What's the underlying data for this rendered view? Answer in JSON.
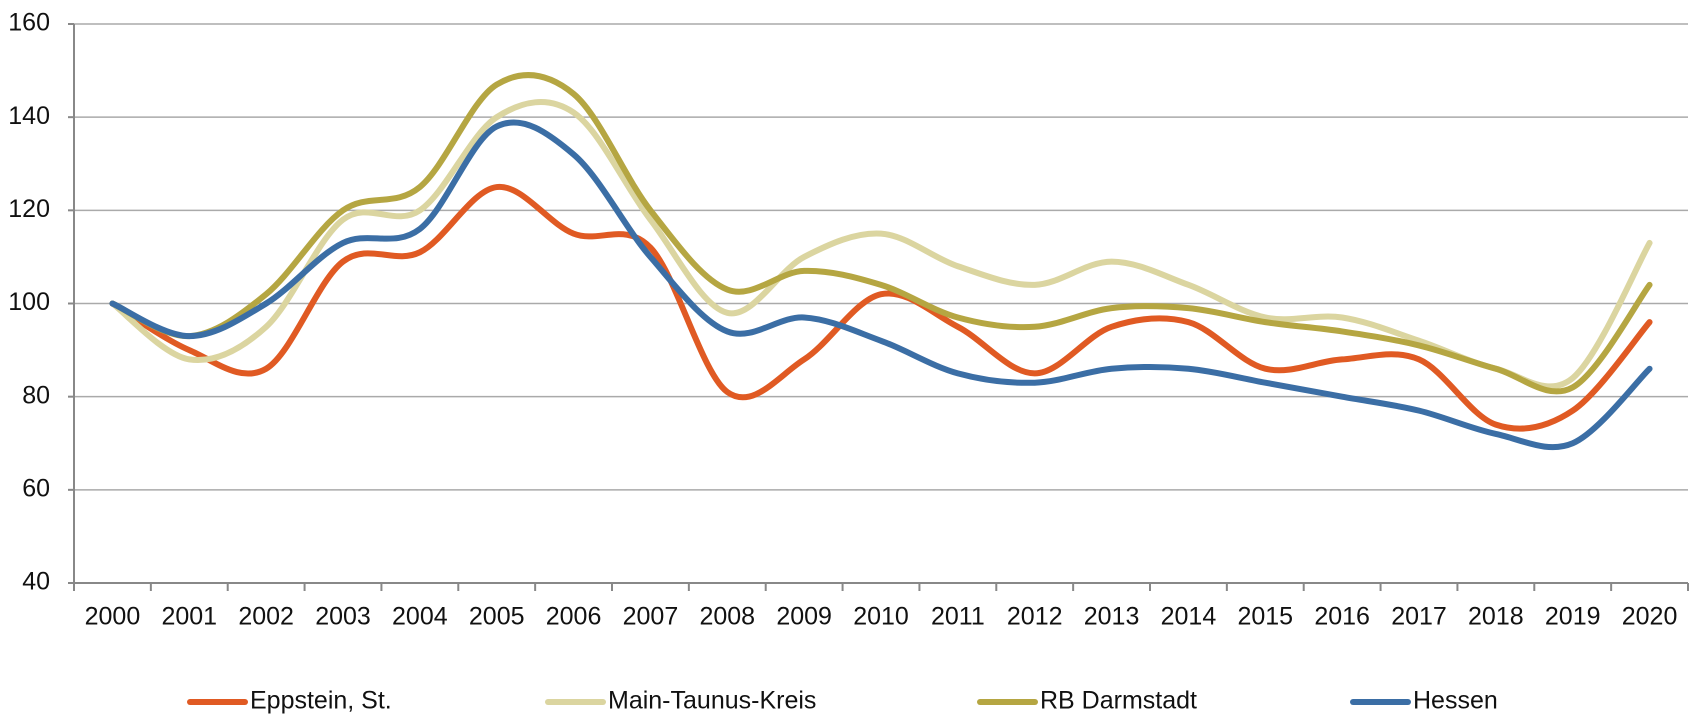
{
  "chart_data": {
    "type": "line",
    "categories": [
      "2000",
      "2001",
      "2002",
      "2003",
      "2004",
      "2005",
      "2006",
      "2007",
      "2008",
      "2009",
      "2010",
      "2011",
      "2012",
      "2013",
      "2014",
      "2015",
      "2016",
      "2017",
      "2018",
      "2019",
      "2020"
    ],
    "series": [
      {
        "name": "Eppstein, St.",
        "color": "#e05a23",
        "values": [
          100,
          90,
          86,
          109,
          111,
          125,
          115,
          112,
          81,
          88,
          102,
          95,
          85,
          95,
          96,
          86,
          88,
          88,
          74,
          77,
          96
        ]
      },
      {
        "name": "Main-Taunus-Kreis",
        "color": "#dbd5a0",
        "values": [
          100,
          88,
          95,
          118,
          120,
          140,
          141,
          118,
          98,
          110,
          115,
          108,
          104,
          109,
          104,
          97,
          97,
          92,
          86,
          84,
          113
        ]
      },
      {
        "name": "RB Darmstadt",
        "color": "#b5a642",
        "values": [
          100,
          93,
          102,
          120,
          125,
          147,
          145,
          120,
          103,
          107,
          104,
          97,
          95,
          99,
          99,
          96,
          94,
          91,
          86,
          82,
          104
        ]
      },
      {
        "name": "Hessen",
        "color": "#3b6ea5",
        "values": [
          100,
          93,
          100,
          113,
          116,
          138,
          132,
          110,
          94,
          97,
          92,
          85,
          83,
          86,
          86,
          83,
          80,
          77,
          72,
          70,
          86
        ]
      }
    ],
    "ylim": [
      40,
      160
    ],
    "yticks": [
      40,
      60,
      80,
      100,
      120,
      140,
      160
    ],
    "grid": true
  }
}
